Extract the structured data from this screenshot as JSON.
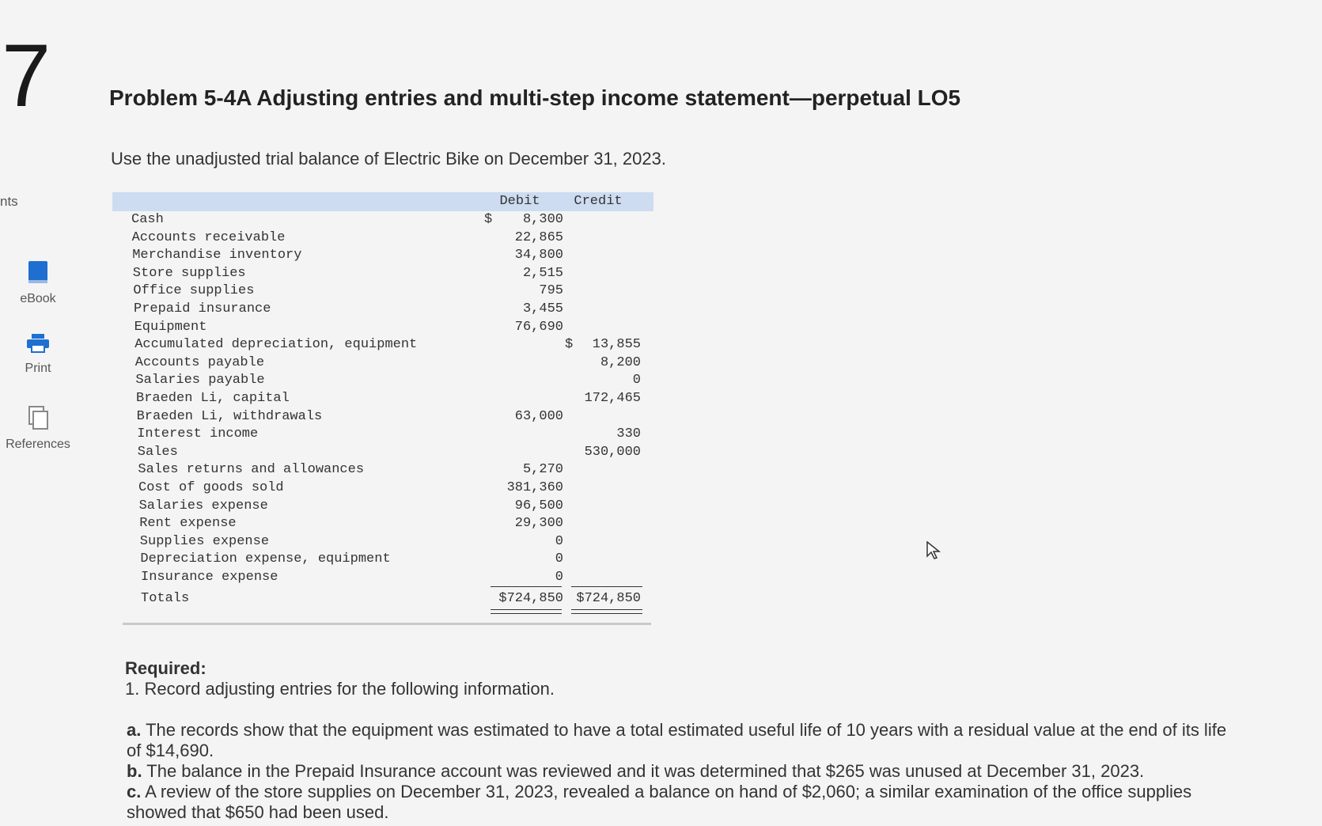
{
  "question_number": "7",
  "sidebar": {
    "cut_label": "nts",
    "items": [
      {
        "label": "eBook",
        "icon": "book-icon"
      },
      {
        "label": "Print",
        "icon": "printer-icon"
      },
      {
        "label": "References",
        "icon": "copy-icon"
      }
    ]
  },
  "problem": {
    "title": "Problem 5-4A Adjusting entries and multi-step income statement—perpetual LO5",
    "intro": "Use the unadjusted trial balance of Electric Bike on December 31, 2023."
  },
  "trial_balance": {
    "headers": {
      "debit": "Debit",
      "credit": "Credit"
    },
    "currency_symbol": "$",
    "rows": [
      {
        "account": "Cash",
        "debit": "8,300",
        "credit": ""
      },
      {
        "account": "Accounts receivable",
        "debit": "22,865",
        "credit": ""
      },
      {
        "account": "Merchandise inventory",
        "debit": "34,800",
        "credit": ""
      },
      {
        "account": "Store supplies",
        "debit": "2,515",
        "credit": ""
      },
      {
        "account": "Office supplies",
        "debit": "795",
        "credit": ""
      },
      {
        "account": "Prepaid insurance",
        "debit": "3,455",
        "credit": ""
      },
      {
        "account": "Equipment",
        "debit": "76,690",
        "credit": ""
      },
      {
        "account": "Accumulated depreciation, equipment",
        "debit": "",
        "credit": "13,855"
      },
      {
        "account": "Accounts payable",
        "debit": "",
        "credit": "8,200"
      },
      {
        "account": "Salaries payable",
        "debit": "",
        "credit": "0"
      },
      {
        "account": "Braeden Li, capital",
        "debit": "",
        "credit": "172,465"
      },
      {
        "account": "Braeden Li, withdrawals",
        "debit": "63,000",
        "credit": ""
      },
      {
        "account": "Interest income",
        "debit": "",
        "credit": "330"
      },
      {
        "account": "Sales",
        "debit": "",
        "credit": "530,000"
      },
      {
        "account": "Sales returns and allowances",
        "debit": "5,270",
        "credit": ""
      },
      {
        "account": "Cost of goods sold",
        "debit": "381,360",
        "credit": ""
      },
      {
        "account": "Salaries expense",
        "debit": "96,500",
        "credit": ""
      },
      {
        "account": "Rent expense",
        "debit": "29,300",
        "credit": ""
      },
      {
        "account": "Supplies expense",
        "debit": "0",
        "credit": ""
      },
      {
        "account": "Depreciation expense, equipment",
        "debit": "0",
        "credit": ""
      },
      {
        "account": "Insurance expense",
        "debit": "0",
        "credit": ""
      }
    ],
    "totals": {
      "label": "Totals",
      "debit": "$724,850",
      "credit": "$724,850"
    }
  },
  "required": {
    "heading": "Required:",
    "step1": "1. Record adjusting entries for the following information.",
    "items": [
      {
        "letter": "a.",
        "text": "The records show that the equipment was estimated to have a total estimated useful life of 10 years with a residual value at the end of its life of $14,690."
      },
      {
        "letter": "b.",
        "text": "The balance in the Prepaid Insurance account was reviewed and it was determined that $265 was unused at December 31, 2023."
      },
      {
        "letter": "c.",
        "text": "A review of the store supplies on December 31, 2023, revealed a balance on hand of $2,060; a similar examination of the office supplies showed that $650 had been used."
      }
    ]
  }
}
